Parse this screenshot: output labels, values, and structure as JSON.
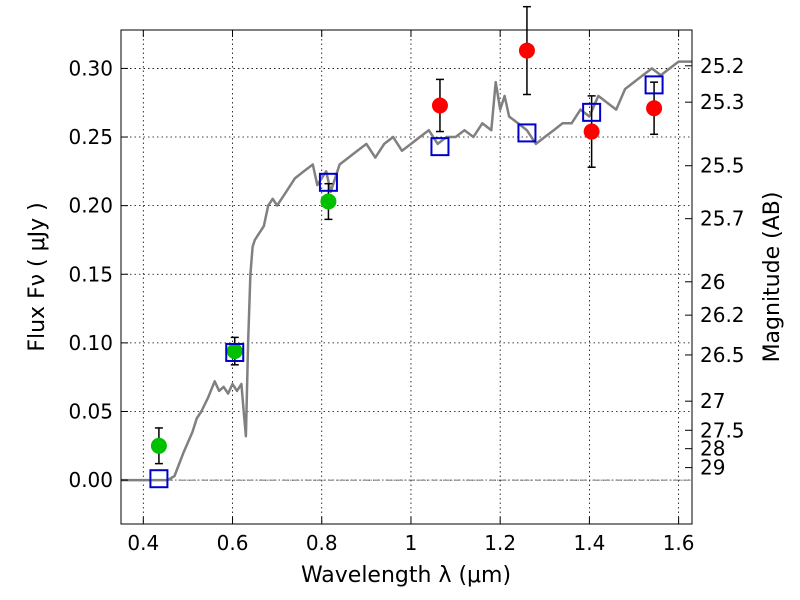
{
  "chart_data": {
    "type": "scatter",
    "xlabel": "Wavelength  λ (μm)",
    "ylabel": "Flux  Fν  ( μJy )",
    "ylabel_right": "Magnitude (AB)",
    "xlim": [
      0.35,
      1.63
    ],
    "ylim": [
      -0.032,
      0.328
    ],
    "grid": true,
    "x_ticks": [
      0.4,
      0.6,
      0.8,
      1.0,
      1.2,
      1.4,
      1.6
    ],
    "x_tick_labels": [
      "0.4",
      "0.6",
      "0.8",
      "1",
      "1.2",
      "1.4",
      "1.6"
    ],
    "y_ticks": [
      0.0,
      0.05,
      0.1,
      0.15,
      0.2,
      0.25,
      0.3
    ],
    "y_tick_labels": [
      "0.00",
      "0.05",
      "0.10",
      "0.15",
      "0.20",
      "0.25",
      "0.30"
    ],
    "right_ticks": [
      {
        "label": "25.2",
        "flux": 0.3019
      },
      {
        "label": "25.3",
        "flux": 0.2754
      },
      {
        "label": "25.5",
        "flux": 0.2291
      },
      {
        "label": "25.7",
        "flux": 0.1905
      },
      {
        "label": "26",
        "flux": 0.1445
      },
      {
        "label": "26.2",
        "flux": 0.1202
      },
      {
        "label": "26.5",
        "flux": 0.0912
      },
      {
        "label": "27",
        "flux": 0.0575
      },
      {
        "label": "27.5",
        "flux": 0.0363
      },
      {
        "label": "28",
        "flux": 0.0229
      },
      {
        "label": "29",
        "flux": 0.0091
      }
    ],
    "series": [
      {
        "kind": "line",
        "color": "#808080",
        "x": [
          0.35,
          0.455,
          0.47,
          0.49,
          0.51,
          0.52,
          0.53,
          0.545,
          0.56,
          0.57,
          0.58,
          0.59,
          0.6,
          0.61,
          0.62,
          0.625,
          0.63,
          0.635,
          0.64,
          0.645,
          0.65,
          0.66,
          0.67,
          0.68,
          0.69,
          0.7,
          0.72,
          0.74,
          0.76,
          0.78,
          0.79,
          0.8,
          0.81,
          0.82,
          0.83,
          0.84,
          0.86,
          0.88,
          0.9,
          0.92,
          0.94,
          0.96,
          0.98,
          1.0,
          1.02,
          1.04,
          1.06,
          1.08,
          1.1,
          1.12,
          1.14,
          1.16,
          1.18,
          1.19,
          1.2,
          1.21,
          1.22,
          1.24,
          1.26,
          1.28,
          1.3,
          1.32,
          1.34,
          1.36,
          1.38,
          1.4,
          1.42,
          1.44,
          1.46,
          1.48,
          1.5,
          1.52,
          1.54,
          1.56,
          1.58,
          1.6,
          1.63
        ],
        "y": [
          0.0,
          0.0,
          0.003,
          0.02,
          0.035,
          0.045,
          0.05,
          0.06,
          0.072,
          0.065,
          0.068,
          0.063,
          0.07,
          0.065,
          0.07,
          0.05,
          0.032,
          0.1,
          0.15,
          0.17,
          0.175,
          0.18,
          0.185,
          0.2,
          0.205,
          0.2,
          0.21,
          0.22,
          0.225,
          0.23,
          0.215,
          0.22,
          0.225,
          0.21,
          0.22,
          0.23,
          0.235,
          0.24,
          0.245,
          0.235,
          0.245,
          0.25,
          0.24,
          0.245,
          0.25,
          0.255,
          0.245,
          0.25,
          0.25,
          0.255,
          0.25,
          0.26,
          0.255,
          0.29,
          0.27,
          0.28,
          0.265,
          0.26,
          0.255,
          0.245,
          0.25,
          0.255,
          0.26,
          0.26,
          0.27,
          0.265,
          0.28,
          0.275,
          0.27,
          0.285,
          0.29,
          0.295,
          0.3,
          0.295,
          0.3,
          0.305,
          0.305
        ]
      },
      {
        "kind": "points",
        "marker": "circle",
        "color": "#00c000",
        "x": [
          0.435,
          0.605,
          0.815
        ],
        "y": [
          0.025,
          0.094,
          0.203
        ],
        "yerr": [
          0.013,
          0.01,
          0.013
        ]
      },
      {
        "kind": "points",
        "marker": "circle",
        "color": "#ff0000",
        "x": [
          1.065,
          1.26,
          1.405,
          1.545
        ],
        "y": [
          0.273,
          0.313,
          0.254,
          0.271
        ],
        "yerr": [
          0.019,
          0.032,
          0.026,
          0.019
        ]
      },
      {
        "kind": "points",
        "marker": "square",
        "color": "#0000cc",
        "x": [
          0.435,
          0.605,
          0.815,
          1.065,
          1.26,
          1.405,
          1.545
        ],
        "y": [
          0.001,
          0.093,
          0.217,
          0.243,
          0.253,
          0.268,
          0.288
        ]
      }
    ]
  }
}
